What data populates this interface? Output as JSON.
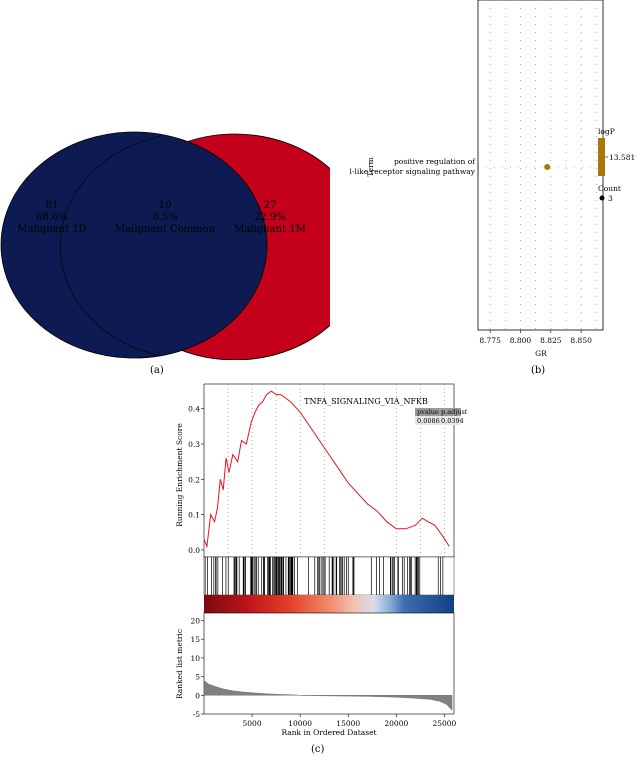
{
  "panels": {
    "a": {
      "label": "(a)"
    },
    "b": {
      "label": "(b)"
    },
    "c": {
      "label": "(c)"
    }
  },
  "venn": {
    "left": {
      "count": "81",
      "percent": "68.6%",
      "name": "Malignant 1D",
      "color": "#0d1b52"
    },
    "common": {
      "count": "10",
      "percent": "8.5%",
      "name": "Malignant Common"
    },
    "right": {
      "count": "27",
      "percent": "22.9%",
      "name": "Malignant 1M",
      "color": "#c4001a"
    }
  },
  "dotplot": {
    "ylabel": "Term",
    "xlabel": "GR",
    "term_line1": "positive regulation of",
    "term_line2": "toll-like receptor signaling pathway",
    "legend_logp_title": "logP",
    "legend_logp_value": "13.58198",
    "legend_count_title": "Count",
    "legend_count_value": "3",
    "dot_color": "#a8770a"
  },
  "gsea": {
    "title": "TNFA_SIGNALING_VIA_NFKB",
    "pvalue_label": "pvalue",
    "padjust_label": "p.adjust",
    "pvalue": "0.0086",
    "padjust": "0.0394",
    "es_ylabel": "Running Enrichment Score",
    "rank_ylabel": "Ranked list metric",
    "xlabel": "Rank in Ordered Dataset",
    "line_color": "#e8141b"
  },
  "chart_data": [
    {
      "type": "scatter",
      "xlabel": "GR",
      "ylabel": "Term",
      "categories": [
        "positive regulation of toll-like receptor signaling pathway"
      ],
      "x_ticks": [
        "8.775",
        "8.800",
        "8.825",
        "8.850"
      ],
      "xlim": [
        8.765,
        8.868
      ],
      "points": [
        {
          "term": "positive regulation of toll-like receptor signaling pathway",
          "x": 8.822,
          "logP": 13.58198,
          "count": 3
        }
      ]
    },
    {
      "type": "line",
      "title": "TNFA_SIGNALING_VIA_NFKB",
      "xlabel": "Rank in Ordered Dataset",
      "ylabel": "Running Enrichment Score",
      "xlim": [
        0,
        26000
      ],
      "ylim": [
        -0.02,
        0.47
      ],
      "x_ticks": [
        "5000",
        "10000",
        "15000",
        "20000",
        "25000"
      ],
      "y_ticks": [
        "0.0",
        "0.1",
        "0.2",
        "0.3",
        "0.4"
      ],
      "x": [
        0,
        300,
        700,
        1100,
        1400,
        1700,
        2000,
        2300,
        2600,
        3000,
        3500,
        3900,
        4400,
        4900,
        5300,
        5700,
        6100,
        6500,
        7000,
        7500,
        8000,
        8500,
        9000,
        10000,
        11000,
        12000,
        13000,
        14000,
        15000,
        16000,
        17000,
        18000,
        19000,
        20000,
        21000,
        22000,
        22700,
        23300,
        24000,
        24800,
        25500
      ],
      "y": [
        0.03,
        0.01,
        0.1,
        0.08,
        0.12,
        0.2,
        0.17,
        0.26,
        0.22,
        0.27,
        0.25,
        0.31,
        0.3,
        0.36,
        0.39,
        0.41,
        0.42,
        0.44,
        0.45,
        0.44,
        0.44,
        0.43,
        0.42,
        0.39,
        0.35,
        0.31,
        0.27,
        0.23,
        0.19,
        0.16,
        0.13,
        0.11,
        0.08,
        0.06,
        0.06,
        0.07,
        0.09,
        0.08,
        0.07,
        0.04,
        0.01
      ]
    },
    {
      "type": "area",
      "xlabel": "Rank in Ordered Dataset",
      "ylabel": "Ranked list metric",
      "xlim": [
        0,
        26000
      ],
      "ylim": [
        -5,
        22
      ],
      "y_ticks": [
        "20",
        "15",
        "10",
        "5",
        "0",
        "-5"
      ],
      "x": [
        0,
        500,
        1000,
        2000,
        3000,
        4000,
        5000,
        6000,
        7000,
        8000,
        9000,
        9800,
        10200,
        13000,
        17000,
        20000,
        22000,
        23500,
        24500,
        25200,
        25800
      ],
      "y": [
        4,
        3,
        2.5,
        1.7,
        1.2,
        0.9,
        0.7,
        0.5,
        0.35,
        0.25,
        0.15,
        0.05,
        -0.05,
        -0.15,
        -0.3,
        -0.5,
        -0.8,
        -1.1,
        -1.6,
        -2.4,
        -4
      ]
    }
  ]
}
